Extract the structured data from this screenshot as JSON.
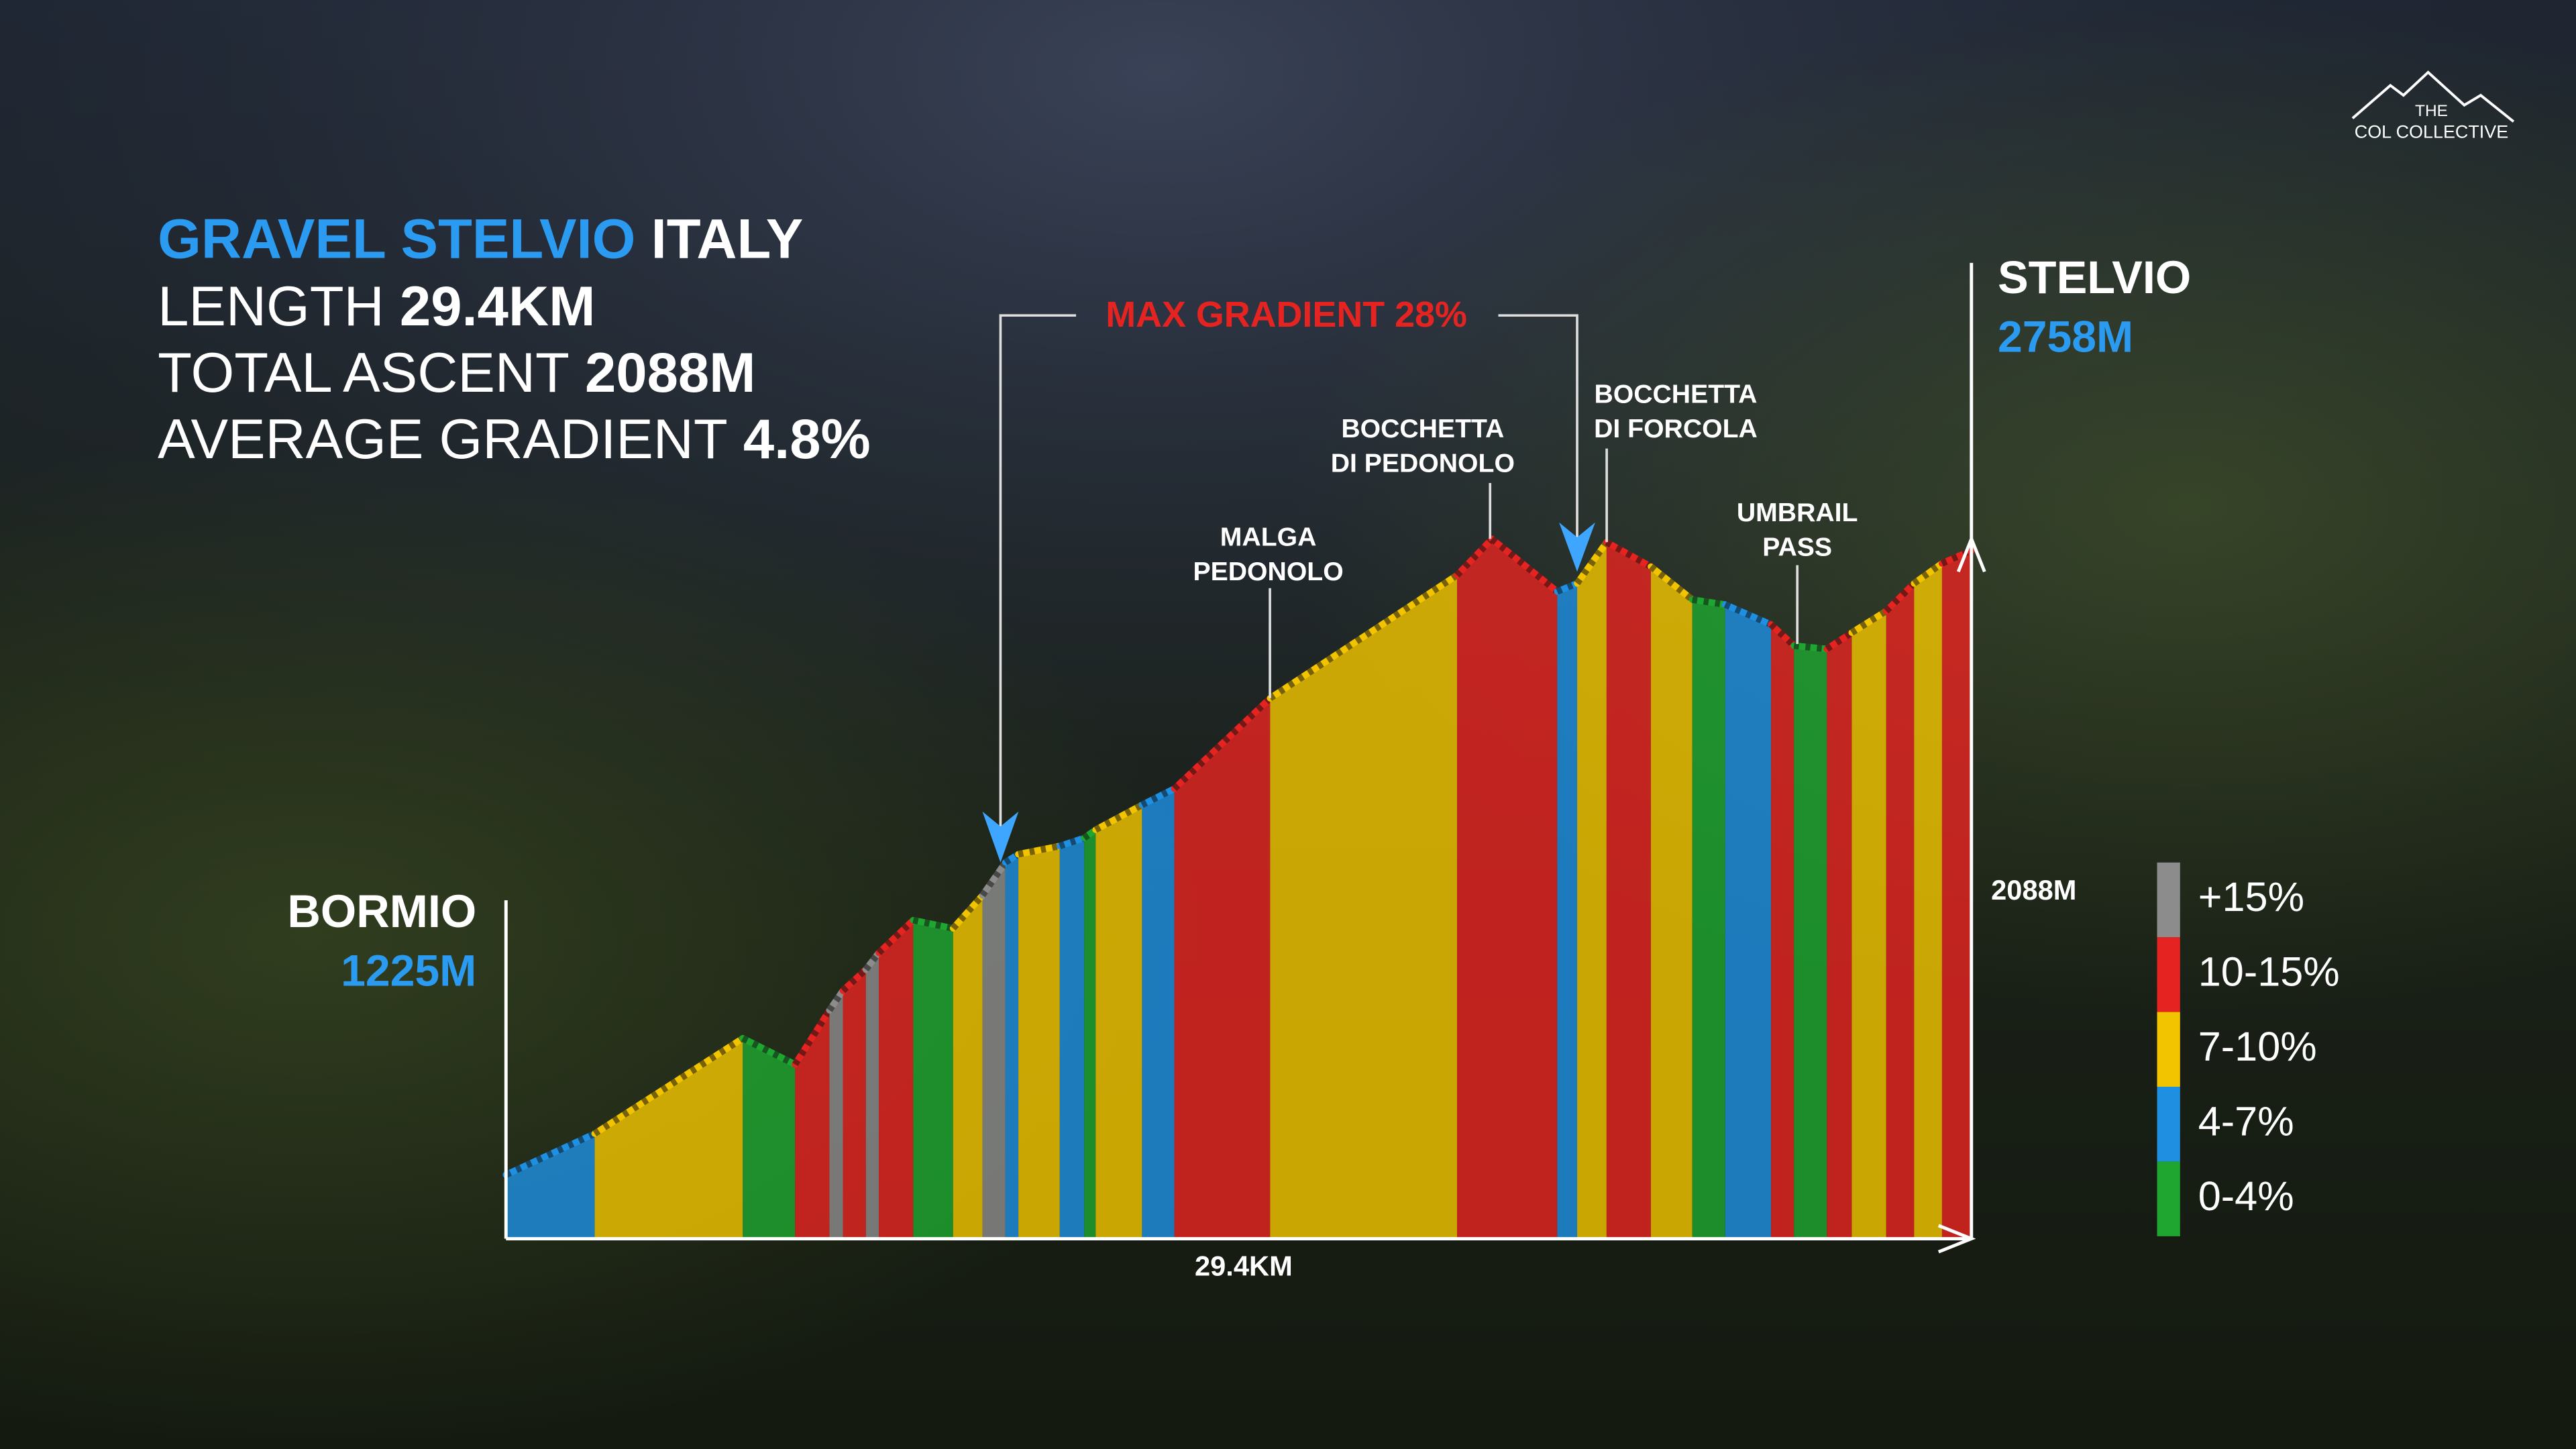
{
  "logo": {
    "line1": "THE",
    "line2": "COL COLLECTIVE"
  },
  "chart_data": {
    "type": "area",
    "title": "GRAVEL STELVIO",
    "title_suffix": "ITALY",
    "stats": [
      {
        "label": "LENGTH",
        "value": "29.4KM"
      },
      {
        "label": "TOTAL ASCENT",
        "value": "2088M"
      },
      {
        "label": "AVERAGE GRADIENT",
        "value": "4.8%"
      }
    ],
    "start": {
      "name": "BORMIO",
      "elevation": "1225M"
    },
    "end": {
      "name": "STELVIO",
      "elevation": "2758M"
    },
    "ascent_label": "2088M",
    "distance_label": "29.4KM",
    "max_gradient_label": "MAX GRADIENT 28%",
    "annotations": [
      {
        "lines": [
          "MALGA",
          "PEDONOLO"
        ]
      },
      {
        "lines": [
          "BOCCHETTA",
          "DI PEDONOLO"
        ]
      },
      {
        "lines": [
          "BOCCHETTA",
          "DI FORCOLA"
        ]
      },
      {
        "lines": [
          "UMBRAIL",
          "PASS"
        ]
      }
    ],
    "xlim": [
      0,
      29.4
    ],
    "ylim": [
      1068,
      2800
    ],
    "x": [
      0,
      1.78,
      4.75,
      5.8,
      6.49,
      6.76,
      7.22,
      7.48,
      8.17,
      8.97,
      9.56,
      10.02,
      10.28,
      11.11,
      11.6,
      11.83,
      12.76,
      13.41,
      15.33,
      19.08,
      19.78,
      21.09,
      21.49,
      22.08,
      22.97,
      23.8,
      24.46,
      25.38,
      25.84,
      26.5,
      27.0,
      27.69,
      28.25,
      28.81,
      29.4
    ],
    "values": [
      1225,
      1326,
      1560,
      1496,
      1629,
      1677,
      1729,
      1770,
      1850,
      1830,
      1911,
      1992,
      2012,
      2032,
      2052,
      2072,
      2133,
      2173,
      2395,
      2697,
      2786,
      2657,
      2677,
      2778,
      2718,
      2637,
      2625,
      2576,
      2524,
      2516,
      2556,
      2609,
      2677,
      2726,
      2758
    ],
    "band_colors": [
      "#1e8fe1",
      "#f2c400",
      "#1fa631",
      "#e52421",
      "#8c8c8c",
      "#e52421",
      "#8c8c8c",
      "#e52421",
      "#1fa631",
      "#f2c400",
      "#8c8c8c",
      "#1e8fe1",
      "#f2c400",
      "#1e8fe1",
      "#1fa631",
      "#f2c400",
      "#1e8fe1",
      "#e52421",
      "#f2c400",
      "#e52421",
      "#e52421",
      "#1e8fe1",
      "#f2c400",
      "#e52421",
      "#f2c400",
      "#1fa631",
      "#1e8fe1",
      "#e52421",
      "#1fa631",
      "#e52421",
      "#f2c400",
      "#e52421",
      "#f2c400",
      "#e52421"
    ],
    "legend": {
      "labels": [
        "+15%",
        "10-15%",
        "7-10%",
        "4-7%",
        "0-4%"
      ],
      "colors": [
        "#8c8c8c",
        "#e52421",
        "#f2c400",
        "#1e8fe1",
        "#1fa631"
      ]
    }
  }
}
